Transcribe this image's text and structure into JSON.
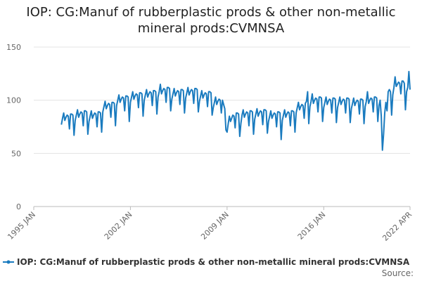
{
  "chart_data": {
    "type": "line",
    "title": "IOP: CG:Manuf of rubberplastic prods & other non-metallic mineral prods:CVMNSA",
    "source": "Source:",
    "xlim": [
      "1995-01",
      "2022-04"
    ],
    "xticks": [
      {
        "value": "1995-01",
        "label": "1995 JAN"
      },
      {
        "value": "2002-01",
        "label": "2002 JAN"
      },
      {
        "value": "2009-01",
        "label": "2009 JAN"
      },
      {
        "value": "2016-01",
        "label": "2016 JAN"
      },
      {
        "value": "2022-04",
        "label": "2022 APR"
      }
    ],
    "ylim": [
      0,
      150
    ],
    "yticks": [
      0,
      50,
      100,
      150
    ],
    "grid": true,
    "legend": "bottom",
    "x": [
      "1997-01",
      "1997-02",
      "1997-03",
      "1997-04",
      "1997-05",
      "1997-06",
      "1997-07",
      "1997-08",
      "1997-09",
      "1997-10",
      "1997-11",
      "1997-12",
      "1998-01",
      "1998-02",
      "1998-03",
      "1998-04",
      "1998-05",
      "1998-06",
      "1998-07",
      "1998-08",
      "1998-09",
      "1998-10",
      "1998-11",
      "1998-12",
      "1999-01",
      "1999-02",
      "1999-03",
      "1999-04",
      "1999-05",
      "1999-06",
      "1999-07",
      "1999-08",
      "1999-09",
      "1999-10",
      "1999-11",
      "1999-12",
      "2000-01",
      "2000-02",
      "2000-03",
      "2000-04",
      "2000-05",
      "2000-06",
      "2000-07",
      "2000-08",
      "2000-09",
      "2000-10",
      "2000-11",
      "2000-12",
      "2001-01",
      "2001-02",
      "2001-03",
      "2001-04",
      "2001-05",
      "2001-06",
      "2001-07",
      "2001-08",
      "2001-09",
      "2001-10",
      "2001-11",
      "2001-12",
      "2002-01",
      "2002-02",
      "2002-03",
      "2002-04",
      "2002-05",
      "2002-06",
      "2002-07",
      "2002-08",
      "2002-09",
      "2002-10",
      "2002-11",
      "2002-12",
      "2003-01",
      "2003-02",
      "2003-03",
      "2003-04",
      "2003-05",
      "2003-06",
      "2003-07",
      "2003-08",
      "2003-09",
      "2003-10",
      "2003-11",
      "2003-12",
      "2004-01",
      "2004-02",
      "2004-03",
      "2004-04",
      "2004-05",
      "2004-06",
      "2004-07",
      "2004-08",
      "2004-09",
      "2004-10",
      "2004-11",
      "2004-12",
      "2005-01",
      "2005-02",
      "2005-03",
      "2005-04",
      "2005-05",
      "2005-06",
      "2005-07",
      "2005-08",
      "2005-09",
      "2005-10",
      "2005-11",
      "2005-12",
      "2006-01",
      "2006-02",
      "2006-03",
      "2006-04",
      "2006-05",
      "2006-06",
      "2006-07",
      "2006-08",
      "2006-09",
      "2006-10",
      "2006-11",
      "2006-12",
      "2007-01",
      "2007-02",
      "2007-03",
      "2007-04",
      "2007-05",
      "2007-06",
      "2007-07",
      "2007-08",
      "2007-09",
      "2007-10",
      "2007-11",
      "2007-12",
      "2008-01",
      "2008-02",
      "2008-03",
      "2008-04",
      "2008-05",
      "2008-06",
      "2008-07",
      "2008-08",
      "2008-09",
      "2008-10",
      "2008-11",
      "2008-12",
      "2009-01",
      "2009-02",
      "2009-03",
      "2009-04",
      "2009-05",
      "2009-06",
      "2009-07",
      "2009-08",
      "2009-09",
      "2009-10",
      "2009-11",
      "2009-12",
      "2010-01",
      "2010-02",
      "2010-03",
      "2010-04",
      "2010-05",
      "2010-06",
      "2010-07",
      "2010-08",
      "2010-09",
      "2010-10",
      "2010-11",
      "2010-12",
      "2011-01",
      "2011-02",
      "2011-03",
      "2011-04",
      "2011-05",
      "2011-06",
      "2011-07",
      "2011-08",
      "2011-09",
      "2011-10",
      "2011-11",
      "2011-12",
      "2012-01",
      "2012-02",
      "2012-03",
      "2012-04",
      "2012-05",
      "2012-06",
      "2012-07",
      "2012-08",
      "2012-09",
      "2012-10",
      "2012-11",
      "2012-12",
      "2013-01",
      "2013-02",
      "2013-03",
      "2013-04",
      "2013-05",
      "2013-06",
      "2013-07",
      "2013-08",
      "2013-09",
      "2013-10",
      "2013-11",
      "2013-12",
      "2014-01",
      "2014-02",
      "2014-03",
      "2014-04",
      "2014-05",
      "2014-06",
      "2014-07",
      "2014-08",
      "2014-09",
      "2014-10",
      "2014-11",
      "2014-12",
      "2015-01",
      "2015-02",
      "2015-03",
      "2015-04",
      "2015-05",
      "2015-06",
      "2015-07",
      "2015-08",
      "2015-09",
      "2015-10",
      "2015-11",
      "2015-12",
      "2016-01",
      "2016-02",
      "2016-03",
      "2016-04",
      "2016-05",
      "2016-06",
      "2016-07",
      "2016-08",
      "2016-09",
      "2016-10",
      "2016-11",
      "2016-12",
      "2017-01",
      "2017-02",
      "2017-03",
      "2017-04",
      "2017-05",
      "2017-06",
      "2017-07",
      "2017-08",
      "2017-09",
      "2017-10",
      "2017-11",
      "2017-12",
      "2018-01",
      "2018-02",
      "2018-03",
      "2018-04",
      "2018-05",
      "2018-06",
      "2018-07",
      "2018-08",
      "2018-09",
      "2018-10",
      "2018-11",
      "2018-12",
      "2019-01",
      "2019-02",
      "2019-03",
      "2019-04",
      "2019-05",
      "2019-06",
      "2019-07",
      "2019-08",
      "2019-09",
      "2019-10",
      "2019-11",
      "2019-12",
      "2020-01",
      "2020-02",
      "2020-03",
      "2020-04",
      "2020-05",
      "2020-06",
      "2020-07",
      "2020-08",
      "2020-09",
      "2020-10",
      "2020-11",
      "2020-12",
      "2021-01",
      "2021-02",
      "2021-03",
      "2021-04",
      "2021-05",
      "2021-06",
      "2021-07",
      "2021-08",
      "2021-09",
      "2021-10",
      "2021-11",
      "2021-12",
      "2022-01",
      "2022-02",
      "2022-03",
      "2022-04"
    ],
    "series": [
      {
        "name": "IOP: CG:Manuf of rubberplastic prods & other non-metallic mineral prods:CVMNSA",
        "color": "#1a7bbf",
        "values": [
          77,
          83,
          88,
          81,
          84,
          86,
          85,
          73,
          87,
          87,
          86,
          67,
          81,
          86,
          91,
          84,
          87,
          89,
          88,
          76,
          90,
          90,
          89,
          68,
          80,
          85,
          90,
          83,
          86,
          88,
          87,
          75,
          89,
          89,
          88,
          70,
          89,
          94,
          99,
          92,
          95,
          97,
          96,
          84,
          98,
          98,
          97,
          76,
          95,
          100,
          105,
          98,
          101,
          103,
          102,
          90,
          104,
          104,
          103,
          80,
          98,
          103,
          108,
          101,
          104,
          106,
          105,
          93,
          107,
          107,
          106,
          85,
          100,
          105,
          110,
          103,
          106,
          108,
          107,
          95,
          109,
          109,
          108,
          87,
          103,
          108,
          115,
          106,
          109,
          111,
          110,
          98,
          112,
          112,
          111,
          90,
          101,
          106,
          111,
          104,
          107,
          109,
          108,
          96,
          110,
          110,
          109,
          88,
          102,
          107,
          112,
          105,
          108,
          110,
          109,
          97,
          111,
          111,
          110,
          89,
          99,
          104,
          109,
          102,
          105,
          107,
          106,
          94,
          108,
          108,
          107,
          86,
          93,
          98,
          103,
          96,
          99,
          101,
          100,
          88,
          100,
          96,
          92,
          72,
          70,
          78,
          85,
          80,
          83,
          86,
          85,
          74,
          88,
          88,
          87,
          66,
          78,
          86,
          91,
          84,
          87,
          89,
          88,
          76,
          90,
          90,
          89,
          68,
          82,
          87,
          92,
          85,
          88,
          90,
          89,
          77,
          91,
          91,
          90,
          69,
          80,
          85,
          90,
          83,
          86,
          88,
          87,
          75,
          89,
          89,
          88,
          63,
          81,
          86,
          91,
          84,
          87,
          89,
          88,
          76,
          90,
          90,
          89,
          70,
          88,
          93,
          98,
          91,
          94,
          96,
          95,
          83,
          97,
          99,
          108,
          78,
          94,
          99,
          106,
          97,
          100,
          102,
          101,
          89,
          103,
          103,
          102,
          80,
          93,
          98,
          103,
          96,
          99,
          101,
          100,
          88,
          102,
          102,
          101,
          79,
          93,
          98,
          103,
          96,
          99,
          101,
          100,
          88,
          102,
          102,
          101,
          79,
          92,
          97,
          102,
          95,
          98,
          100,
          99,
          87,
          101,
          101,
          100,
          78,
          94,
          99,
          108,
          97,
          100,
          102,
          101,
          89,
          103,
          103,
          102,
          80,
          95,
          100,
          85,
          53,
          68,
          88,
          98,
          90,
          108,
          110,
          108,
          86,
          105,
          112,
          122,
          113,
          115,
          117,
          116,
          106,
          118,
          118,
          116,
          91,
          108,
          112,
          127,
          110
        ]
      }
    ]
  }
}
